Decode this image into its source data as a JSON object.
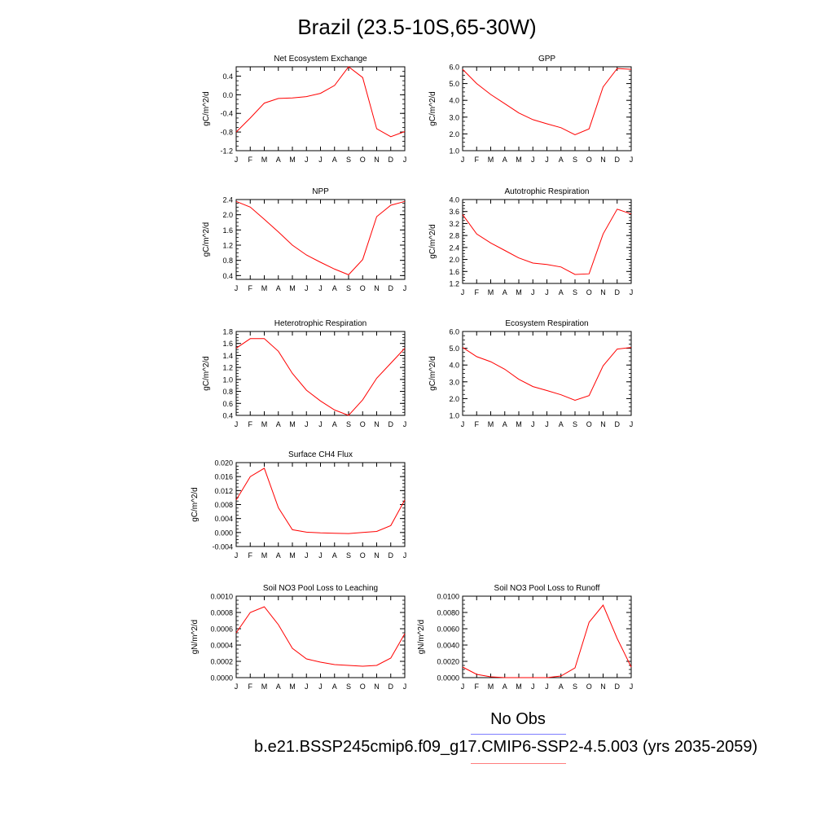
{
  "title": "Brazil (23.5-10S,65-30W)",
  "legend": {
    "obs_label": "No Obs",
    "obs_color": "#7d7dff",
    "case_label": "b.e21.BSSP245cmip6.f09_g17.CMIP6-SSP2-4.5.003 (yrs 2035-2059)",
    "case_color": "#ff7d7d"
  },
  "series_color": "#ff0000",
  "chart_data": [
    {
      "type": "line",
      "title": "Net Ecosystem Exchange",
      "ylabel": "gC/m^2/d",
      "x": [
        "J",
        "F",
        "M",
        "A",
        "M",
        "J",
        "J",
        "A",
        "S",
        "O",
        "N",
        "D",
        "J"
      ],
      "ylim": [
        -1.2,
        0.6
      ],
      "yticks": [
        -1.2,
        -0.8,
        -0.4,
        0.0,
        0.4
      ],
      "ytick_labels": [
        "-1.2",
        "-0.8",
        "-0.4",
        "0.0",
        "0.4"
      ],
      "values": [
        -0.8,
        -0.5,
        -0.18,
        -0.08,
        -0.07,
        -0.04,
        0.03,
        0.2,
        0.6,
        0.37,
        -0.73,
        -0.9,
        -0.79
      ]
    },
    {
      "type": "line",
      "title": "GPP",
      "ylabel": "gC/m^2/d",
      "x": [
        "J",
        "F",
        "M",
        "A",
        "M",
        "J",
        "J",
        "A",
        "S",
        "O",
        "N",
        "D",
        "J"
      ],
      "ylim": [
        1.0,
        6.0
      ],
      "yticks": [
        1.0,
        2.0,
        3.0,
        4.0,
        5.0,
        6.0
      ],
      "ytick_labels": [
        "1.0",
        "2.0",
        "3.0",
        "4.0",
        "5.0",
        "6.0"
      ],
      "values": [
        5.85,
        5.0,
        4.35,
        3.8,
        3.25,
        2.85,
        2.6,
        2.37,
        1.95,
        2.3,
        4.8,
        5.9,
        5.85
      ]
    },
    {
      "type": "line",
      "title": "NPP",
      "ylabel": "gC/m^2/d",
      "x": [
        "J",
        "F",
        "M",
        "A",
        "M",
        "J",
        "J",
        "A",
        "S",
        "O",
        "N",
        "D",
        "J"
      ],
      "ylim": [
        0.3,
        2.4
      ],
      "yticks": [
        0.4,
        0.8,
        1.2,
        1.6,
        2.0,
        2.4
      ],
      "ytick_labels": [
        "0.4",
        "0.8",
        "1.2",
        "1.6",
        "2.0",
        "2.4"
      ],
      "values": [
        2.35,
        2.2,
        1.88,
        1.55,
        1.2,
        0.94,
        0.75,
        0.57,
        0.42,
        0.82,
        1.95,
        2.25,
        2.35
      ]
    },
    {
      "type": "line",
      "title": "Autotrophic Respiration",
      "ylabel": "gC/m^2/d",
      "x": [
        "J",
        "F",
        "M",
        "A",
        "M",
        "J",
        "J",
        "A",
        "S",
        "O",
        "N",
        "D",
        "J"
      ],
      "ylim": [
        1.2,
        4.0
      ],
      "yticks": [
        1.2,
        1.6,
        2.0,
        2.4,
        2.8,
        3.2,
        3.6,
        4.0
      ],
      "ytick_labels": [
        "1.2",
        "1.6",
        "2.0",
        "2.4",
        "2.8",
        "3.2",
        "3.6",
        "4.0"
      ],
      "values": [
        3.5,
        2.85,
        2.55,
        2.3,
        2.05,
        1.88,
        1.83,
        1.75,
        1.5,
        1.52,
        2.85,
        3.68,
        3.52
      ]
    },
    {
      "type": "line",
      "title": "Heterotrophic Respiration",
      "ylabel": "gC/m^2/d",
      "x": [
        "J",
        "F",
        "M",
        "A",
        "M",
        "J",
        "J",
        "A",
        "S",
        "O",
        "N",
        "D",
        "J"
      ],
      "ylim": [
        0.4,
        1.8
      ],
      "yticks": [
        0.4,
        0.6,
        0.8,
        1.0,
        1.2,
        1.4,
        1.6,
        1.8
      ],
      "ytick_labels": [
        "0.4",
        "0.6",
        "0.8",
        "1.0",
        "1.2",
        "1.4",
        "1.6",
        "1.8"
      ],
      "values": [
        1.52,
        1.68,
        1.68,
        1.47,
        1.1,
        0.82,
        0.64,
        0.49,
        0.4,
        0.66,
        1.02,
        1.27,
        1.52
      ]
    },
    {
      "type": "line",
      "title": "Ecosystem Respiration",
      "ylabel": "gC/m^2/d",
      "x": [
        "J",
        "F",
        "M",
        "A",
        "M",
        "J",
        "J",
        "A",
        "S",
        "O",
        "N",
        "D",
        "J"
      ],
      "ylim": [
        1.0,
        6.0
      ],
      "yticks": [
        1.0,
        2.0,
        3.0,
        4.0,
        5.0,
        6.0
      ],
      "ytick_labels": [
        "1.0",
        "2.0",
        "3.0",
        "4.0",
        "5.0",
        "6.0"
      ],
      "values": [
        5.05,
        4.5,
        4.2,
        3.75,
        3.15,
        2.72,
        2.48,
        2.23,
        1.9,
        2.18,
        3.95,
        4.95,
        5.05
      ]
    },
    {
      "type": "line",
      "title": "Surface CH4 Flux",
      "ylabel": "gC/m^2/d",
      "x": [
        "J",
        "F",
        "M",
        "A",
        "M",
        "J",
        "J",
        "A",
        "S",
        "O",
        "N",
        "D",
        "J"
      ],
      "ylim": [
        -0.004,
        0.02
      ],
      "yticks": [
        -0.004,
        0.0,
        0.004,
        0.008,
        0.012,
        0.016,
        0.02
      ],
      "ytick_labels": [
        "-0.004",
        "0.000",
        "0.004",
        "0.008",
        "0.012",
        "0.016",
        "0.020"
      ],
      "values": [
        0.0093,
        0.016,
        0.0184,
        0.0071,
        0.0008,
        0.0001,
        -0.0001,
        -0.0002,
        -0.0003,
        0.0,
        0.0003,
        0.002,
        0.0093
      ]
    },
    {
      "type": "line",
      "title": "Soil NO3 Pool Loss to Leaching",
      "ylabel": "gN/m^2/d",
      "x": [
        "J",
        "F",
        "M",
        "A",
        "M",
        "J",
        "J",
        "A",
        "S",
        "O",
        "N",
        "D",
        "J"
      ],
      "ylim": [
        0.0,
        0.001
      ],
      "yticks": [
        0.0,
        0.0002,
        0.0004,
        0.0006,
        0.0008,
        0.001
      ],
      "ytick_labels": [
        "0.0000",
        "0.0002",
        "0.0004",
        "0.0006",
        "0.0008",
        "0.0010"
      ],
      "values": [
        0.00055,
        0.0008,
        0.00087,
        0.00065,
        0.00036,
        0.00023,
        0.00019,
        0.00016,
        0.00015,
        0.00014,
        0.00015,
        0.00024,
        0.00054
      ]
    },
    {
      "type": "line",
      "title": "Soil NO3 Pool Loss to Runoff",
      "ylabel": "gN/m^2/d",
      "x": [
        "J",
        "F",
        "M",
        "A",
        "M",
        "J",
        "J",
        "A",
        "S",
        "O",
        "N",
        "D",
        "J"
      ],
      "ylim": [
        0.0,
        0.01
      ],
      "yticks": [
        0.0,
        0.002,
        0.004,
        0.006,
        0.008,
        0.01
      ],
      "ytick_labels": [
        "0.0000",
        "0.0020",
        "0.0040",
        "0.0060",
        "0.0080",
        "0.0100"
      ],
      "values": [
        0.0013,
        0.0004,
        0.0001,
        0.0,
        0.0,
        0.0,
        0.0,
        0.0002,
        0.0012,
        0.0068,
        0.0089,
        0.0048,
        0.0013
      ]
    }
  ]
}
